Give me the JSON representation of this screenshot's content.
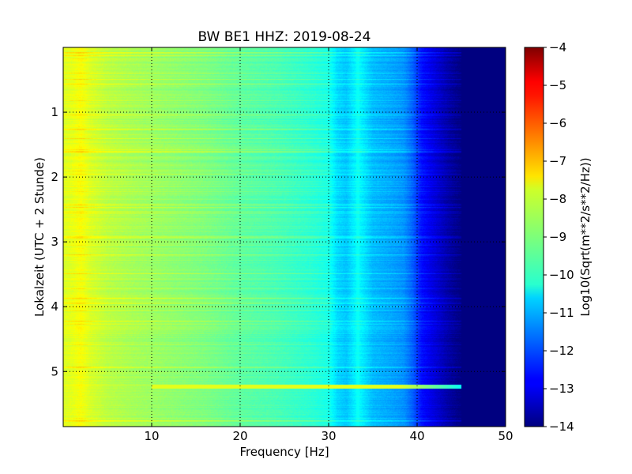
{
  "chart_data": {
    "type": "heatmap",
    "title": "BW BE1 HHZ: 2019-08-24",
    "xlabel": "Frequency [Hz]",
    "ylabel": "Lokalzeit (UTC + 2 Stunde)",
    "colorbar_label": "Log10(Sqrt(m**2/s**2/Hz))",
    "colormap": "jet",
    "xlim": [
      0,
      50
    ],
    "ylim": [
      5.85,
      0
    ],
    "clim": [
      -14,
      -4
    ],
    "x_ticks": [
      10,
      20,
      30,
      40,
      50
    ],
    "x_tick_labels": [
      "10",
      "20",
      "30",
      "40",
      "50"
    ],
    "y_ticks": [
      1,
      2,
      3,
      4,
      5
    ],
    "y_tick_labels": [
      "1",
      "2",
      "3",
      "4",
      "5"
    ],
    "colorbar_ticks": [
      -4,
      -5,
      -6,
      -7,
      -8,
      -9,
      -10,
      -11,
      -12,
      -13,
      -14
    ],
    "colorbar_tick_labels": [
      "−4",
      "−5",
      "−6",
      "−7",
      "−8",
      "−9",
      "−10",
      "−11",
      "−12",
      "−13",
      "−14"
    ],
    "grid": true,
    "value_profile": {
      "frequency_hz": [
        0,
        1,
        2,
        3,
        5,
        8,
        12,
        16,
        20,
        24,
        28,
        30,
        31,
        32,
        33.3,
        35,
        37,
        38.5,
        39.5,
        40.5,
        42,
        43.5,
        45,
        50
      ],
      "log10_amplitude": [
        -8.1,
        -8.0,
        -7.8,
        -8.1,
        -8.4,
        -8.6,
        -8.8,
        -9.0,
        -9.3,
        -9.5,
        -9.8,
        -10.0,
        -10.6,
        -10.8,
        -10.2,
        -10.9,
        -11.1,
        -11.3,
        -11.8,
        -12.6,
        -13.1,
        -13.6,
        -14.0,
        -14.0
      ]
    },
    "features": [
      {
        "name": "narrowband line",
        "frequency_hz": 33.3,
        "log10_amplitude": -10.2
      },
      {
        "name": "broadband event",
        "time_h": 5.23,
        "frequency_range_hz": [
          10,
          45
        ],
        "log10_amplitude": -8.0
      }
    ]
  }
}
